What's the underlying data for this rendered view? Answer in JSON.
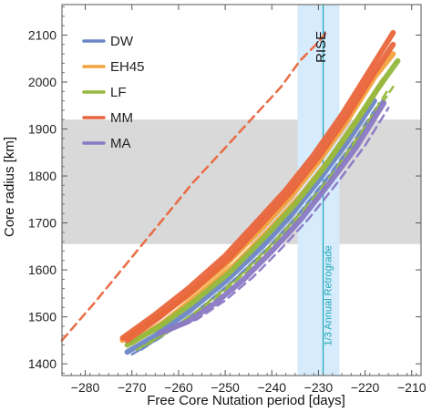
{
  "chart_data": {
    "type": "line",
    "xlabel": "Free Core Nutation period  [days]",
    "ylabel": "Core radius  [km]",
    "xlim": [
      -285,
      -208
    ],
    "ylim": [
      1375,
      2165
    ],
    "xticks": [
      -280,
      -270,
      -260,
      -250,
      -240,
      -230,
      -220,
      -210
    ],
    "yticks": [
      1400,
      1500,
      1600,
      1700,
      1800,
      1900,
      2000,
      2100
    ],
    "legend_position": "top-left",
    "bands": [
      {
        "axis": "y",
        "from": 1655,
        "to": 1920,
        "color": "#d9d9d9"
      },
      {
        "axis": "x",
        "from": -234.5,
        "to": -225.5,
        "color": "#d6ebfb"
      }
    ],
    "vline": {
      "x": -229,
      "color": "#1aa7b8"
    },
    "annotations": [
      {
        "id": "rise",
        "text": "RISE",
        "x": -230,
        "y": 2080
      },
      {
        "id": "retro",
        "text": "1/3 Annual Retrograde",
        "x": -227.5,
        "y": 1640
      }
    ],
    "series": [
      {
        "name": "DW",
        "color": "#6b86c6",
        "lines": [
          {
            "x": [
              -271,
              -265,
              -258,
              -250,
              -242,
              -236,
              -230,
              -224,
              -218
            ],
            "y": [
              1425,
              1460,
              1510,
              1575,
              1650,
              1715,
              1790,
              1870,
              1960
            ]
          },
          {
            "x": [
              -270,
              -264,
              -257,
              -249,
              -241,
              -235,
              -229,
              -223,
              -217
            ],
            "y": [
              1420,
              1455,
              1505,
              1570,
              1645,
              1710,
              1785,
              1865,
              1955
            ]
          },
          {
            "x": [
              -268,
              -262,
              -255,
              -248,
              -240,
              -234,
              -228,
              -222,
              -216
            ],
            "y": [
              1430,
              1470,
              1520,
              1580,
              1655,
              1720,
              1795,
              1875,
              1965
            ]
          }
        ]
      },
      {
        "name": "EH45",
        "color": "#f3a33e",
        "lines": [
          {
            "x": [
              -272,
              -265,
              -258,
              -250,
              -242,
              -236,
              -230,
              -224,
              -218,
              -214
            ],
            "y": [
              1450,
              1495,
              1545,
              1610,
              1690,
              1755,
              1830,
              1915,
              2010,
              2060
            ]
          },
          {
            "x": [
              -270,
              -263,
              -256,
              -248,
              -240,
              -234,
              -228,
              -222,
              -216
            ],
            "y": [
              1445,
              1490,
              1545,
              1610,
              1690,
              1755,
              1830,
              1915,
              2005
            ]
          }
        ]
      },
      {
        "name": "LF",
        "color": "#93b83e",
        "lines": [
          {
            "x": [
              -271,
              -264,
              -257,
              -249,
              -241,
              -235,
              -229,
              -223,
              -217,
              -213
            ],
            "y": [
              1440,
              1480,
              1530,
              1595,
              1675,
              1740,
              1815,
              1900,
              1990,
              2045
            ]
          },
          {
            "x": [
              -269,
              -262,
              -255,
              -247,
              -239,
              -233,
              -227,
              -221,
              -215
            ],
            "y": [
              1430,
              1470,
              1520,
              1585,
              1665,
              1730,
              1805,
              1890,
              1985
            ]
          },
          {
            "x": [
              -267,
              -260,
              -253,
              -245,
              -237,
              -231,
              -225,
              -219,
              -214
            ],
            "y": [
              1440,
              1480,
              1530,
              1600,
              1680,
              1745,
              1825,
              1915,
              1990
            ]
          }
        ]
      },
      {
        "name": "MM",
        "color": "#e9653b",
        "lines": [
          {
            "x": [
              -272,
              -265,
              -258,
              -250,
              -243,
              -237,
              -231,
              -225,
              -219,
              -214
            ],
            "y": [
              1455,
              1505,
              1560,
              1630,
              1705,
              1770,
              1845,
              1930,
              2025,
              2105
            ]
          },
          {
            "x": [
              -271,
              -264,
              -257,
              -249,
              -242,
              -236,
              -230,
              -224,
              -218,
              -214
            ],
            "y": [
              1450,
              1500,
              1555,
              1625,
              1700,
              1765,
              1840,
              1925,
              2020,
              2080
            ]
          },
          {
            "x": [
              -285,
              -278,
              -271,
              -264,
              -257,
              -250,
              -244,
              -238,
              -234,
              -230,
              -228
            ],
            "y": [
              1450,
              1530,
              1615,
              1700,
              1785,
              1860,
              1925,
              1990,
              2045,
              2085,
              2110
            ]
          }
        ]
      },
      {
        "name": "MA",
        "color": "#8a79c4",
        "lines": [
          {
            "x": [
              -264,
              -258,
              -252,
              -246,
              -240,
              -234,
              -228,
              -222,
              -216
            ],
            "y": [
              1465,
              1490,
              1530,
              1580,
              1640,
              1705,
              1780,
              1860,
              1955
            ]
          },
          {
            "x": [
              -262,
              -256,
              -250,
              -244,
              -238,
              -232,
              -226,
              -220,
              -215
            ],
            "y": [
              1470,
              1495,
              1535,
              1585,
              1645,
              1710,
              1785,
              1865,
              1945
            ]
          }
        ]
      }
    ]
  }
}
